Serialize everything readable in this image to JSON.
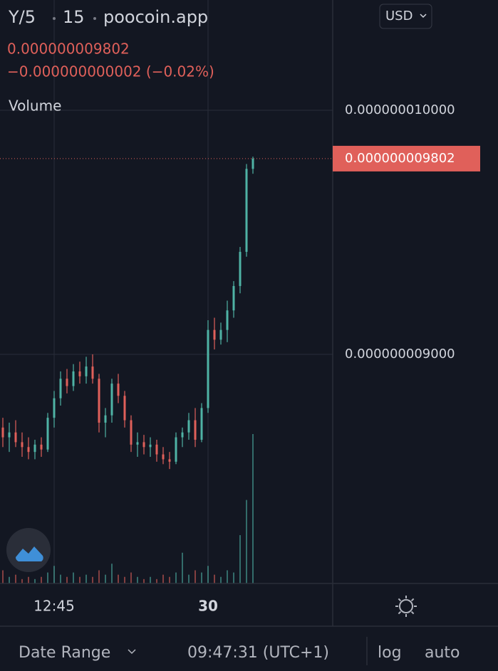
{
  "chart_data": {
    "type": "candlestick",
    "symbol": "Y/5",
    "interval": "15",
    "source": "poocoin.app",
    "currency": "USD",
    "last_price": {
      "value": 9.802e-09,
      "label": "0.000000009802"
    },
    "change_label": "−0.000000000002 (−0.02%)",
    "volume_label": "Volume",
    "date_range_label": "Date Range",
    "clock": "09:47:31 (UTC+1)",
    "log_label": "log",
    "auto_label": "auto",
    "up_color": "#4fb3a5",
    "down_color": "#e0605a",
    "ylim": [
      8.061e-09,
      1.0452e-08
    ],
    "yticks": [
      {
        "value": 1e-08,
        "label": "0.000000010000"
      },
      {
        "value": 9e-09,
        "label": "0.000000009000"
      }
    ],
    "grid": true,
    "categories": [
      null,
      null,
      null,
      null,
      null,
      null,
      null,
      null,
      "12:45",
      null,
      null,
      null,
      null,
      null,
      null,
      null,
      null,
      null,
      null,
      null,
      null,
      null,
      null,
      null,
      null,
      null,
      null,
      null,
      null,
      null,
      null,
      null,
      "30",
      null,
      null,
      null,
      null,
      null,
      null,
      null
    ],
    "open": [
      8.7e-09,
      8.66e-09,
      8.68e-09,
      8.64e-09,
      8.62e-09,
      8.6e-09,
      8.63e-09,
      8.61e-09,
      8.74e-09,
      8.82e-09,
      8.9e-09,
      8.87e-09,
      8.93e-09,
      8.91e-09,
      8.95e-09,
      8.9e-09,
      8.72e-09,
      8.75e-09,
      8.88e-09,
      8.83e-09,
      8.73e-09,
      8.63e-09,
      8.64e-09,
      8.62e-09,
      8.63e-09,
      8.59e-09,
      8.57e-09,
      8.56e-09,
      8.66e-09,
      8.68e-09,
      8.73e-09,
      8.65e-09,
      8.78e-09,
      9.1e-09,
      9.06e-09,
      9.1e-09,
      9.18e-09,
      9.28e-09,
      9.42e-09,
      9.76e-09
    ],
    "high": [
      8.74e-09,
      8.72e-09,
      8.73e-09,
      8.68e-09,
      8.66e-09,
      8.65e-09,
      8.66e-09,
      8.76e-09,
      8.85e-09,
      8.93e-09,
      8.94e-09,
      8.96e-09,
      8.97e-09,
      8.99e-09,
      9e-09,
      8.92e-09,
      8.78e-09,
      8.9e-09,
      8.92e-09,
      8.85e-09,
      8.75e-09,
      8.68e-09,
      8.67e-09,
      8.66e-09,
      8.65e-09,
      8.62e-09,
      8.6e-09,
      8.68e-09,
      8.7e-09,
      8.76e-09,
      8.78e-09,
      8.8e-09,
      9.14e-09,
      9.15e-09,
      9.13e-09,
      9.22e-09,
      9.3e-09,
      9.44e-09,
      9.78e-09,
      9.81e-09
    ],
    "low": [
      8.62e-09,
      8.6e-09,
      8.62e-09,
      8.58e-09,
      8.57e-09,
      8.57e-09,
      8.58e-09,
      8.6e-09,
      8.7e-09,
      8.79e-09,
      8.84e-09,
      8.85e-09,
      8.88e-09,
      8.88e-09,
      8.88e-09,
      8.68e-09,
      8.66e-09,
      8.72e-09,
      8.8e-09,
      8.7e-09,
      8.6e-09,
      8.58e-09,
      8.59e-09,
      8.58e-09,
      8.56e-09,
      8.55e-09,
      8.53e-09,
      8.55e-09,
      8.62e-09,
      8.65e-09,
      8.62e-09,
      8.64e-09,
      8.76e-09,
      9.02e-09,
      9.04e-09,
      9.05e-09,
      9.15e-09,
      9.25e-09,
      9.4e-09,
      9.74e-09
    ],
    "close": [
      8.66e-09,
      8.68e-09,
      8.64e-09,
      8.62e-09,
      8.6e-09,
      8.63e-09,
      8.61e-09,
      8.74e-09,
      8.82e-09,
      8.9e-09,
      8.87e-09,
      8.93e-09,
      8.91e-09,
      8.95e-09,
      8.9e-09,
      8.72e-09,
      8.75e-09,
      8.88e-09,
      8.83e-09,
      8.73e-09,
      8.63e-09,
      8.64e-09,
      8.62e-09,
      8.63e-09,
      8.59e-09,
      8.57e-09,
      8.56e-09,
      8.66e-09,
      8.68e-09,
      8.73e-09,
      8.65e-09,
      8.78e-09,
      9.1e-09,
      9.06e-09,
      9.1e-09,
      9.18e-09,
      9.28e-09,
      9.42e-09,
      9.76e-09,
      9.802e-09
    ],
    "volume": [
      6,
      3,
      4,
      2,
      3,
      2,
      3,
      5,
      8,
      4,
      3,
      5,
      3,
      4,
      3,
      6,
      4,
      9,
      4,
      3,
      5,
      3,
      2,
      3,
      2,
      4,
      3,
      5,
      14,
      4,
      6,
      5,
      8,
      4,
      3,
      6,
      5,
      22,
      38,
      68
    ]
  }
}
